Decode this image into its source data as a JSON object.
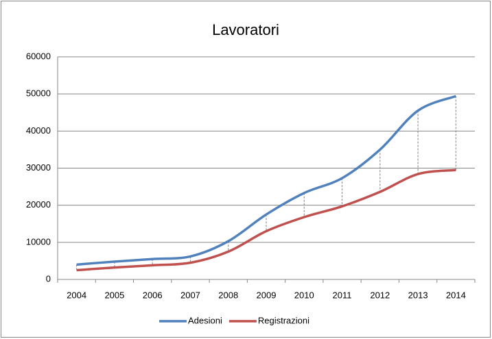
{
  "chart_data": {
    "type": "line",
    "title": "Lavoratori",
    "categories": [
      "2004",
      "2005",
      "2006",
      "2007",
      "2008",
      "2009",
      "2010",
      "2011",
      "2012",
      "2013",
      "2014"
    ],
    "series": [
      {
        "name": "Adesioni",
        "color": "#4f81bd",
        "values": [
          4000,
          4800,
          5500,
          6200,
          10300,
          17500,
          23300,
          27300,
          35000,
          45500,
          49400
        ]
      },
      {
        "name": "Registrazioni",
        "color": "#c0504d",
        "values": [
          2500,
          3200,
          3800,
          4500,
          7500,
          13000,
          16800,
          19700,
          23600,
          28400,
          29500
        ]
      }
    ],
    "ylim": [
      0,
      60000
    ],
    "yticks": [
      0,
      10000,
      20000,
      30000,
      40000,
      50000,
      60000
    ],
    "grid": true,
    "smooth": true,
    "drop_lines": true,
    "legend": "bottom"
  }
}
